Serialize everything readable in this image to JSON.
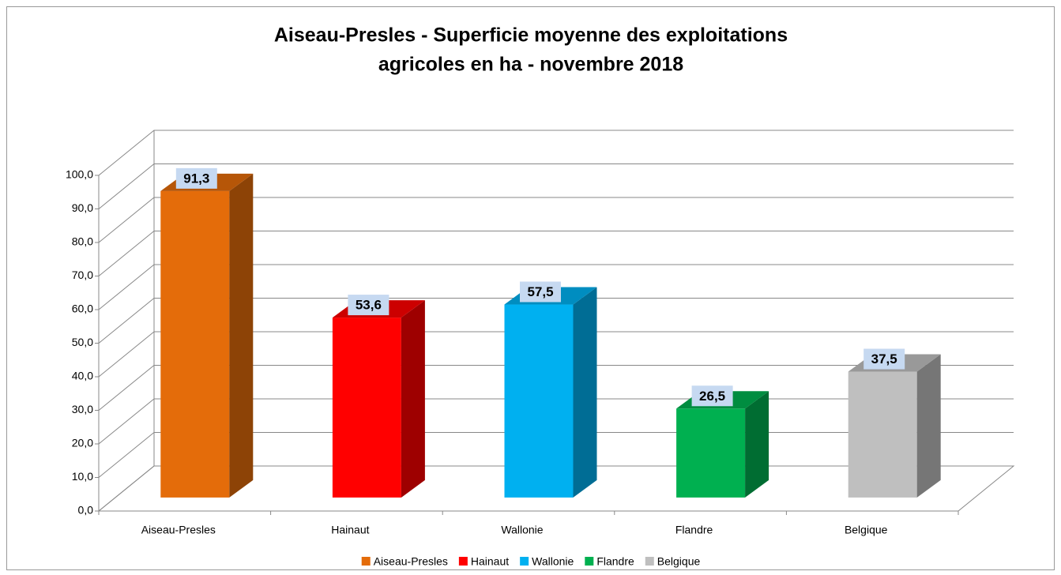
{
  "chart_data": {
    "type": "bar3d",
    "title": [
      "Aiseau-Presles - Superficie moyenne des exploitations",
      "agricoles en ha - novembre 2018"
    ],
    "categories": [
      "Aiseau-Presles",
      "Hainaut",
      "Wallonie",
      "Flandre",
      "Belgique"
    ],
    "values": [
      91.3,
      53.6,
      57.5,
      26.5,
      37.5
    ],
    "value_labels": [
      "91,3",
      "53,6",
      "57,5",
      "26,5",
      "37,5"
    ],
    "colors": [
      "#e46c0a",
      "#ff0000",
      "#00b0f0",
      "#00b050",
      "#bfbfbf"
    ],
    "ylim": [
      0,
      100
    ],
    "yticks": [
      {
        "value": 0,
        "label": "0,0"
      },
      {
        "value": 10,
        "label": "10,0"
      },
      {
        "value": 20,
        "label": "20,0"
      },
      {
        "value": 30,
        "label": "30,0"
      },
      {
        "value": 40,
        "label": "40,0"
      },
      {
        "value": 50,
        "label": "50,0"
      },
      {
        "value": 60,
        "label": "60,0"
      },
      {
        "value": 70,
        "label": "70,0"
      },
      {
        "value": 80,
        "label": "80,0"
      },
      {
        "value": 90,
        "label": "90,0"
      },
      {
        "value": 100,
        "label": "100,0"
      }
    ],
    "grid": true,
    "legend": "bottom"
  }
}
